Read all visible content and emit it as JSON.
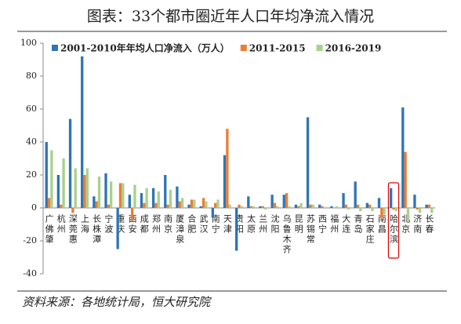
{
  "chart_data": {
    "type": "bar",
    "title": "图表：33个都市圈近年人口年均净流入情况",
    "source": "资料来源：各地统计局，恒大研究院",
    "categories": [
      "广佛肇",
      "杭州",
      "深莞惠",
      "上海",
      "长株潭",
      "宁波",
      "重庆",
      "西安",
      "成都",
      "郑州",
      "南京",
      "厦漳泉",
      "合肥",
      "武汉",
      "南宁",
      "天津",
      "贵阳",
      "太原",
      "兰州",
      "沈阳",
      "乌鲁木齐",
      "昆明",
      "苏锡常",
      "西宁",
      "福州",
      "大连",
      "青岛",
      "石家庄",
      "南昌",
      "哈尔滨",
      "北京",
      "济南",
      "长春"
    ],
    "series": [
      {
        "name": "2001-2010年年均人口净流入（万人）",
        "color": "#2e75b6",
        "values": [
          40,
          20,
          54,
          92,
          7,
          21,
          -25,
          8,
          9,
          12,
          20,
          13,
          2,
          1,
          -6,
          32,
          -26,
          7,
          1,
          8,
          8,
          2,
          55,
          2,
          1,
          9,
          16,
          3,
          6,
          12,
          61,
          8,
          2
        ]
      },
      {
        "name": "2011-2015",
        "color": "#ed7d31",
        "values": [
          6,
          2,
          -3,
          20,
          4,
          2,
          15,
          -8,
          3,
          3,
          2,
          4,
          5,
          6,
          3,
          48,
          2,
          1,
          1,
          3,
          9,
          1,
          2,
          1,
          0,
          2,
          2,
          2,
          -6,
          -1,
          34,
          -1,
          2
        ]
      },
      {
        "name": "2016-2019",
        "color": "#a9d18e",
        "values": [
          35,
          30,
          24,
          24,
          19,
          16,
          15,
          14,
          12,
          10,
          11,
          6,
          5,
          4,
          5,
          2,
          1,
          1,
          -1,
          1,
          1,
          3,
          2,
          0,
          1,
          -1,
          -2,
          -2,
          -4,
          -2,
          -8,
          -3,
          -3
        ]
      }
    ],
    "ylim": [
      -40,
      100
    ],
    "yticks": [
      -40,
      -20,
      0,
      20,
      40,
      60,
      80,
      100
    ],
    "grid": false,
    "legend": "top",
    "highlight_category": 29
  }
}
